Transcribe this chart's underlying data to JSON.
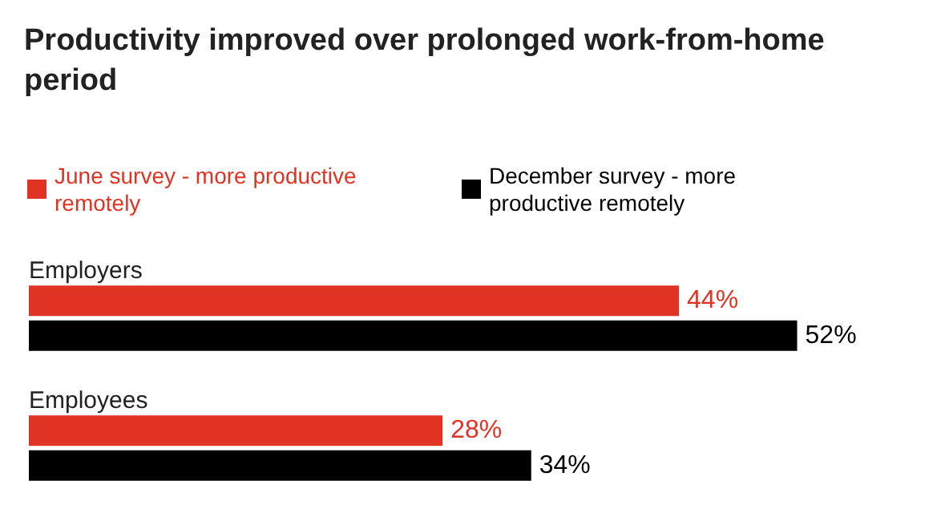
{
  "chart_data": {
    "type": "bar",
    "orientation": "horizontal",
    "title": "Productivity improved over prolonged work-from-home period",
    "categories": [
      "Employers",
      "Employees"
    ],
    "series": [
      {
        "name": "June survey - more productive remotely",
        "color": "#e03323",
        "values": [
          44,
          28
        ],
        "value_labels": [
          "44%",
          "28%"
        ]
      },
      {
        "name": "December survey - more productive remotely",
        "color": "#000000",
        "values": [
          52,
          34
        ],
        "value_labels": [
          "52%",
          "34%"
        ]
      }
    ],
    "legend": "top left",
    "tick_labels": false
  }
}
